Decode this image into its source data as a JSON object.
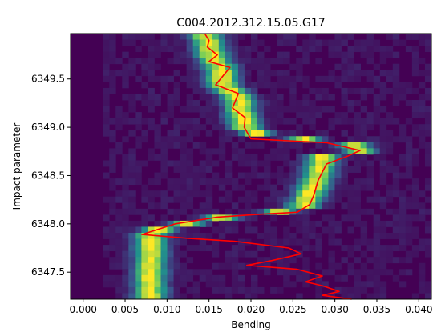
{
  "chart_data": {
    "type": "heatmap",
    "title": "C004.2012.312.15.05.G17",
    "xlabel": "Bending",
    "ylabel": "Impact parameter",
    "xlim": [
      -0.0015,
      0.0415
    ],
    "ylim": [
      6347.22,
      6349.97
    ],
    "x_ticks": [
      0.0,
      0.005,
      0.01,
      0.015,
      0.02,
      0.025,
      0.03,
      0.035,
      0.04
    ],
    "x_tick_labels": [
      "0.000",
      "0.005",
      "0.010",
      "0.015",
      "0.020",
      "0.025",
      "0.030",
      "0.035",
      "0.040"
    ],
    "y_ticks": [
      6347.5,
      6348.0,
      6348.5,
      6349.0,
      6349.5
    ],
    "y_tick_labels": [
      "6347.5",
      "6348.0",
      "6348.5",
      "6349.0",
      "6349.5"
    ],
    "grid": false,
    "colormap": "viridis",
    "background_color": "#440154",
    "heat_ridge": {
      "name": "",
      "points": [
        {
          "x": 0.0145,
          "y": 6349.95
        },
        {
          "x": 0.015,
          "y": 6349.85
        },
        {
          "x": 0.0155,
          "y": 6349.7
        },
        {
          "x": 0.0165,
          "y": 6349.6
        },
        {
          "x": 0.0165,
          "y": 6349.45
        },
        {
          "x": 0.0185,
          "y": 6349.3
        },
        {
          "x": 0.019,
          "y": 6349.1
        },
        {
          "x": 0.0195,
          "y": 6348.95
        },
        {
          "x": 0.0355,
          "y": 6348.78
        },
        {
          "x": 0.0285,
          "y": 6348.7
        },
        {
          "x": 0.028,
          "y": 6348.5
        },
        {
          "x": 0.027,
          "y": 6348.3
        },
        {
          "x": 0.026,
          "y": 6348.15
        },
        {
          "x": 0.015,
          "y": 6348.05
        },
        {
          "x": 0.008,
          "y": 6347.92
        }
      ]
    },
    "series": [
      {
        "name": "",
        "color": "#ff0000",
        "points": [
          {
            "x": 0.0145,
            "y": 6349.97
          },
          {
            "x": 0.015,
            "y": 6349.9
          },
          {
            "x": 0.0148,
            "y": 6349.83
          },
          {
            "x": 0.016,
            "y": 6349.75
          },
          {
            "x": 0.015,
            "y": 6349.68
          },
          {
            "x": 0.0175,
            "y": 6349.62
          },
          {
            "x": 0.0158,
            "y": 6349.44
          },
          {
            "x": 0.0185,
            "y": 6349.35
          },
          {
            "x": 0.0178,
            "y": 6349.2
          },
          {
            "x": 0.0193,
            "y": 6349.1
          },
          {
            "x": 0.0192,
            "y": 6349.0
          },
          {
            "x": 0.02,
            "y": 6348.88
          },
          {
            "x": 0.029,
            "y": 6348.84
          },
          {
            "x": 0.033,
            "y": 6348.76
          },
          {
            "x": 0.0315,
            "y": 6348.7
          },
          {
            "x": 0.029,
            "y": 6348.62
          },
          {
            "x": 0.028,
            "y": 6348.45
          },
          {
            "x": 0.0275,
            "y": 6348.3
          },
          {
            "x": 0.027,
            "y": 6348.2
          },
          {
            "x": 0.0255,
            "y": 6348.12
          },
          {
            "x": 0.021,
            "y": 6348.1
          },
          {
            "x": 0.016,
            "y": 6348.07
          },
          {
            "x": 0.011,
            "y": 6348.0
          },
          {
            "x": 0.007,
            "y": 6347.89
          },
          {
            "x": 0.0125,
            "y": 6347.85
          },
          {
            "x": 0.018,
            "y": 6347.82
          },
          {
            "x": 0.0245,
            "y": 6347.75
          },
          {
            "x": 0.026,
            "y": 6347.69
          },
          {
            "x": 0.0225,
            "y": 6347.62
          },
          {
            "x": 0.0195,
            "y": 6347.57
          },
          {
            "x": 0.0255,
            "y": 6347.53
          },
          {
            "x": 0.0285,
            "y": 6347.46
          },
          {
            "x": 0.0265,
            "y": 6347.4
          },
          {
            "x": 0.0285,
            "y": 6347.36
          },
          {
            "x": 0.0305,
            "y": 6347.3
          },
          {
            "x": 0.0285,
            "y": 6347.26
          },
          {
            "x": 0.032,
            "y": 6347.22
          }
        ]
      }
    ]
  }
}
